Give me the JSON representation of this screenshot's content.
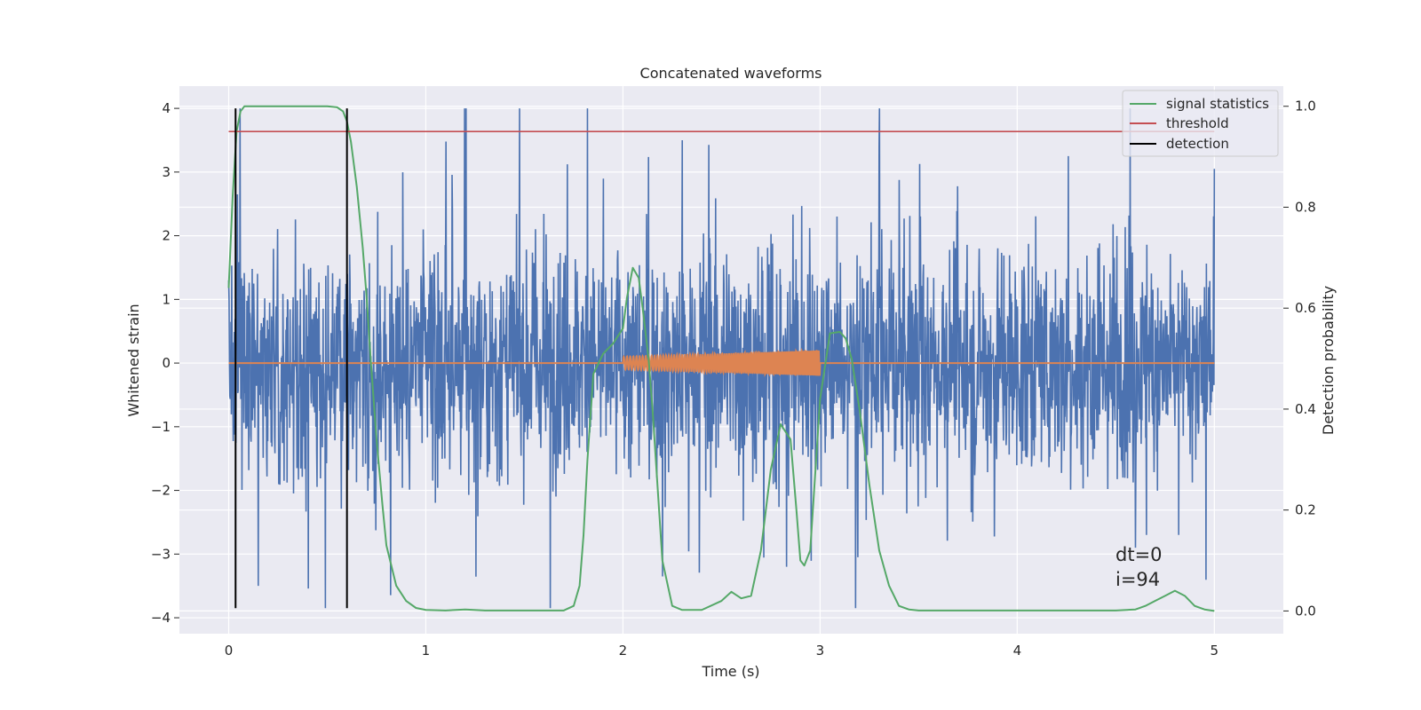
{
  "chart_data": {
    "type": "line",
    "title": "Concatenated waveforms",
    "xlabel": "Time (s)",
    "ylabel": "Whitened strain",
    "y2label": "Detection probability",
    "xlim": [
      -0.25,
      5.35
    ],
    "ylim": [
      -4.25,
      4.35
    ],
    "y2lim": [
      -0.045,
      1.04
    ],
    "x_ticks": [
      0,
      1,
      2,
      3,
      4,
      5
    ],
    "y_ticks": [
      4,
      3,
      2,
      1,
      0,
      -1,
      -2,
      -3,
      -4
    ],
    "y_tick_labels": [
      "4",
      "3",
      "2",
      "1",
      "0",
      "−1",
      "−2",
      "−3",
      "−4"
    ],
    "y2_ticks": [
      1.0,
      0.8,
      0.6,
      0.4,
      0.2,
      0.0
    ],
    "y2_tick_labels": [
      "1.0",
      "0.8",
      "0.6",
      "0.4",
      "0.2",
      "0.0"
    ],
    "grid": true,
    "legend_position": "top-right",
    "series": [
      {
        "name": "",
        "axis": "left",
        "kind": "noise",
        "color": "#4c72b0",
        "x_range": [
          0,
          5
        ],
        "typical_envelope": [
          -1.4,
          1.4
        ],
        "peak_envelope": [
          -3.85,
          4.0
        ],
        "note_values": {
          "x": [
            0,
            0.49,
            1.82,
            2.3,
            2.83,
            3.3,
            4.26,
            4.6,
            4.82,
            5.0
          ],
          "y": [
            1.3,
            -3.85,
            4.0,
            3.5,
            -3.2,
            3.4,
            3.25,
            -2.9,
            -2.7,
            3.05
          ]
        }
      },
      {
        "name": "",
        "axis": "left",
        "kind": "chirp",
        "color": "#dd8452",
        "x_range": [
          0,
          5
        ],
        "baseline": 0,
        "chirp_start": 2.0,
        "chirp_end": 3.0,
        "amplitude_start": 0.1,
        "amplitude_end": 0.2
      },
      {
        "name": "signal statistics",
        "axis": "right",
        "color": "#55a868",
        "x": [
          0.0,
          0.02,
          0.04,
          0.06,
          0.08,
          0.1,
          0.14,
          0.2,
          0.3,
          0.4,
          0.5,
          0.55,
          0.58,
          0.6,
          0.62,
          0.65,
          0.68,
          0.7,
          0.72,
          0.75,
          0.78,
          0.8,
          0.85,
          0.9,
          0.95,
          1.0,
          1.1,
          1.2,
          1.3,
          1.5,
          1.7,
          1.75,
          1.78,
          1.8,
          1.82,
          1.85,
          1.9,
          1.95,
          2.0,
          2.02,
          2.05,
          2.08,
          2.1,
          2.13,
          2.15,
          2.18,
          2.2,
          2.25,
          2.3,
          2.4,
          2.5,
          2.55,
          2.6,
          2.65,
          2.7,
          2.75,
          2.8,
          2.85,
          2.88,
          2.9,
          2.92,
          2.95,
          3.0,
          3.05,
          3.1,
          3.13,
          3.16,
          3.2,
          3.25,
          3.3,
          3.35,
          3.4,
          3.45,
          3.5,
          3.7,
          4.0,
          4.3,
          4.5,
          4.6,
          4.65,
          4.7,
          4.75,
          4.8,
          4.85,
          4.9,
          4.95,
          5.0
        ],
        "values": [
          0.64,
          0.82,
          0.95,
          0.99,
          1.0,
          1.0,
          1.0,
          1.0,
          1.0,
          1.0,
          1.0,
          0.998,
          0.99,
          0.97,
          0.93,
          0.84,
          0.72,
          0.62,
          0.5,
          0.34,
          0.21,
          0.13,
          0.05,
          0.02,
          0.006,
          0.002,
          0.001,
          0.003,
          0.001,
          0.001,
          0.001,
          0.01,
          0.05,
          0.15,
          0.3,
          0.47,
          0.51,
          0.53,
          0.56,
          0.62,
          0.68,
          0.66,
          0.6,
          0.5,
          0.4,
          0.22,
          0.1,
          0.01,
          0.002,
          0.002,
          0.02,
          0.038,
          0.025,
          0.03,
          0.12,
          0.28,
          0.37,
          0.34,
          0.2,
          0.1,
          0.09,
          0.12,
          0.42,
          0.55,
          0.553,
          0.54,
          0.5,
          0.4,
          0.25,
          0.12,
          0.05,
          0.01,
          0.003,
          0.001,
          0.001,
          0.001,
          0.001,
          0.001,
          0.003,
          0.01,
          0.02,
          0.03,
          0.04,
          0.03,
          0.01,
          0.003,
          0.0
        ]
      },
      {
        "name": "threshold",
        "axis": "right",
        "color": "#c44e52",
        "x": [
          0,
          5
        ],
        "values": [
          0.95,
          0.95
        ]
      },
      {
        "name": "detection",
        "axis": "left",
        "color": "#000000",
        "type": "vlines",
        "x": [
          0.035,
          0.6
        ],
        "y_range": [
          -3.85,
          4.0
        ]
      }
    ],
    "annotations": [
      {
        "text": "dt=0",
        "x": 4.5,
        "y": -3.0
      },
      {
        "text": "i=94",
        "x": 4.5,
        "y": -3.45
      }
    ]
  }
}
